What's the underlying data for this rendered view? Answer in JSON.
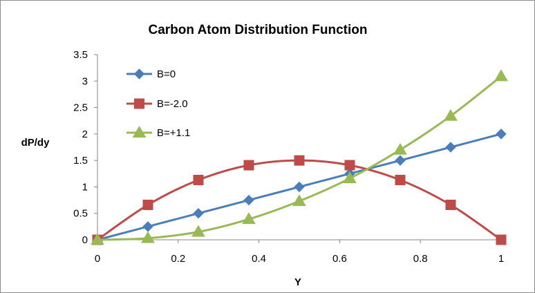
{
  "chart_data": {
    "type": "line",
    "title": "Carbon Atom Distribution Function",
    "xlabel": "Y",
    "ylabel": "dP/dy",
    "xlim": [
      0,
      1
    ],
    "ylim": [
      0,
      3.5
    ],
    "x_ticks": [
      0,
      0.2,
      0.4,
      0.6,
      0.8,
      1
    ],
    "x_tick_labels": [
      "0",
      "0.2",
      "0.4",
      "0.6",
      "0.8",
      "1"
    ],
    "y_ticks": [
      0,
      0.5,
      1,
      1.5,
      2,
      2.5,
      3,
      3.5
    ],
    "y_tick_labels": [
      "0",
      "0.5",
      "1",
      "1.5",
      "2",
      "2.5",
      "3",
      "3.5"
    ],
    "grid": false,
    "smooth": true,
    "legend_position": "top-left",
    "series": [
      {
        "name": "B=0",
        "color": "#4a7ebb",
        "marker": "diamond",
        "x": [
          0,
          0.125,
          0.25,
          0.375,
          0.5,
          0.625,
          0.75,
          0.875,
          1
        ],
        "y": [
          0,
          0.25,
          0.5,
          0.75,
          1.0,
          1.25,
          1.5,
          1.75,
          2.0
        ]
      },
      {
        "name": "B=-2.0",
        "color": "#be4b48",
        "marker": "square",
        "x": [
          0,
          0.125,
          0.25,
          0.375,
          0.5,
          0.625,
          0.75,
          0.875,
          1
        ],
        "y": [
          0,
          0.66,
          1.13,
          1.41,
          1.5,
          1.41,
          1.13,
          0.66,
          0
        ]
      },
      {
        "name": "B=+1.1",
        "color": "#98b954",
        "marker": "triangle",
        "x": [
          0,
          0.125,
          0.25,
          0.375,
          0.5,
          0.625,
          0.75,
          0.875,
          1
        ],
        "y": [
          0,
          0.03,
          0.15,
          0.39,
          0.73,
          1.16,
          1.7,
          2.34,
          3.09
        ]
      }
    ]
  }
}
